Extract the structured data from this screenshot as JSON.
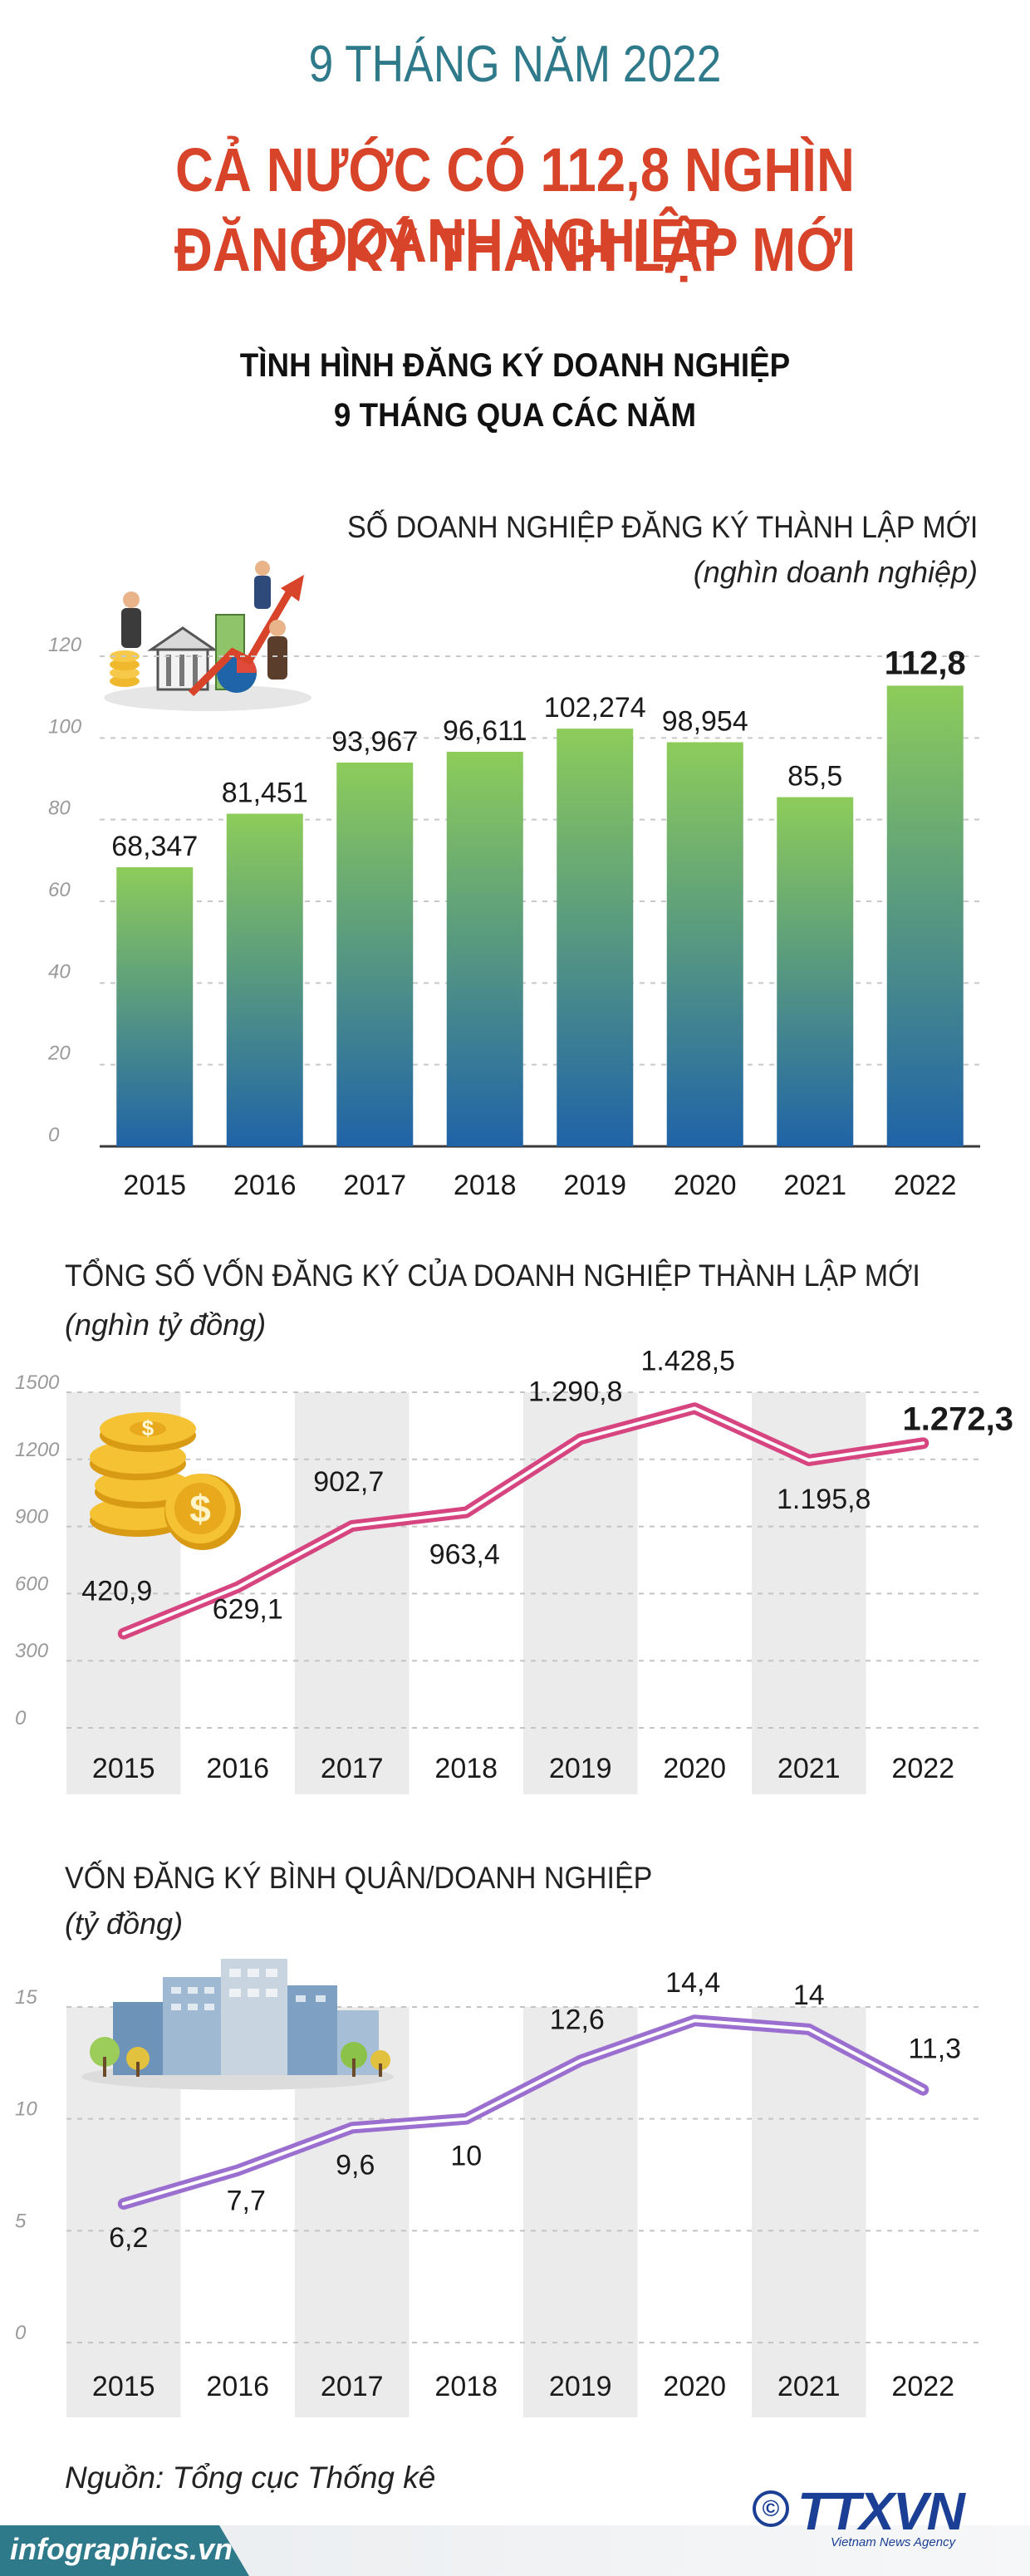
{
  "header": {
    "kicker": "9 THÁNG NĂM 2022",
    "title_line1": "CẢ NƯỚC CÓ 112,8 NGHÌN DOANH NGHIỆP",
    "title_line2": "ĐĂNG KÝ THÀNH LẬP MỚI",
    "subtitle_line1": "TÌNH HÌNH ĐĂNG KÝ DOANH NGHIỆP",
    "subtitle_line2": "9 THÁNG QUA CÁC NĂM"
  },
  "colors": {
    "kicker": "#2f7a8a",
    "title": "#d8442a",
    "bar_top": "#8dcc5a",
    "bar_bottom": "#1f63a8",
    "line1": "#d6457f",
    "line2": "#9b6fcf",
    "band": "#ebebeb"
  },
  "icons": [
    "business-people-icon",
    "gold-coins-icon",
    "city-buildings-icon"
  ],
  "chart_data": [
    {
      "type": "bar",
      "title": "SỐ DOANH NGHIỆP ĐĂNG KÝ THÀNH LẬP MỚI",
      "unit": "(nghìn doanh nghiệp)",
      "categories": [
        "2015",
        "2016",
        "2017",
        "2018",
        "2019",
        "2020",
        "2021",
        "2022"
      ],
      "values": [
        68.347,
        81.451,
        93.967,
        96.611,
        102.274,
        98.954,
        85.5,
        112.8
      ],
      "value_labels": [
        "68,347",
        "81,451",
        "93,967",
        "96,611",
        "102,274",
        "98,954",
        "85,5",
        "112,8"
      ],
      "yticks": [
        "0",
        "20",
        "40",
        "60",
        "80",
        "100",
        "120"
      ],
      "ylim": [
        0,
        120
      ],
      "grid": true
    },
    {
      "type": "line",
      "title": "TỔNG SỐ VỐN ĐĂNG KÝ CỦA DOANH NGHIỆP THÀNH LẬP MỚI",
      "unit": "(nghìn tỷ đồng)",
      "categories": [
        "2015",
        "2016",
        "2017",
        "2018",
        "2019",
        "2020",
        "2021",
        "2022"
      ],
      "values": [
        420.9,
        629.1,
        902.7,
        963.4,
        1290.8,
        1428.5,
        1195.8,
        1272.3
      ],
      "value_labels": [
        "420,9",
        "629,1",
        "902,7",
        "963,4",
        "1.290,8",
        "1.428,5",
        "1.195,8",
        "1.272,3"
      ],
      "yticks": [
        "0",
        "300",
        "600",
        "900",
        "1200",
        "1500"
      ],
      "ylim": [
        0,
        1500
      ],
      "grid": true
    },
    {
      "type": "line",
      "title": "VỐN ĐĂNG KÝ BÌNH QUÂN/DOANH NGHIỆP",
      "unit": "(tỷ đồng)",
      "categories": [
        "2015",
        "2016",
        "2017",
        "2018",
        "2019",
        "2020",
        "2021",
        "2022"
      ],
      "values": [
        6.2,
        7.7,
        9.6,
        10,
        12.6,
        14.4,
        14,
        11.3
      ],
      "value_labels": [
        "6,2",
        "7,7",
        "9,6",
        "10",
        "12,6",
        "14,4",
        "14",
        "11,3"
      ],
      "yticks": [
        "0",
        "5",
        "10",
        "15"
      ],
      "ylim": [
        0,
        15
      ],
      "grid": true
    }
  ],
  "footer": {
    "source": "Nguồn: Tổng cục Thống kê",
    "site": "infographics.vn",
    "copyright": "©",
    "agency_logo": "TTXVN",
    "agency_name": "Vietnam News Agency"
  }
}
